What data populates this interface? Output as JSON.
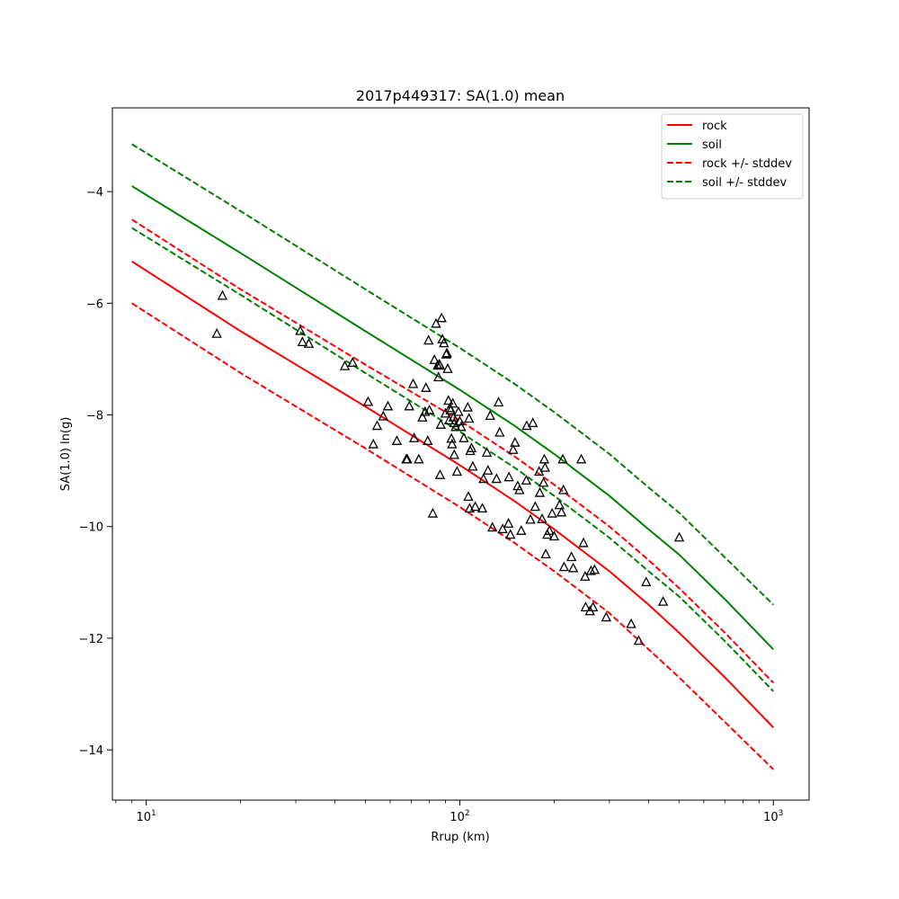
{
  "chart_data": {
    "type": "line",
    "title": "2017p449317: SA(1.0) mean",
    "xlabel": "Rrup (km)",
    "ylabel": "SA(1.0) ln(g)",
    "xscale": "log",
    "xlim": [
      7.8,
      1300
    ],
    "ylim": [
      -14.9,
      -2.5
    ],
    "xtick_labels": [
      {
        "base": "10",
        "exp": "1",
        "value": 10
      },
      {
        "base": "10",
        "exp": "2",
        "value": 100
      },
      {
        "base": "10",
        "exp": "3",
        "value": 1000
      }
    ],
    "ytick_labels": [
      {
        "label": "−4",
        "value": -4
      },
      {
        "label": "−6",
        "value": -6
      },
      {
        "label": "−8",
        "value": -8
      },
      {
        "label": "−10",
        "value": -10
      },
      {
        "label": "−12",
        "value": -12
      },
      {
        "label": "−14",
        "value": -14
      }
    ],
    "grid": false,
    "legend_position": "top-right",
    "series": [
      {
        "name": "rock",
        "color": "#ff0000",
        "dash": false,
        "x": [
          9,
          20,
          50,
          100,
          150,
          200,
          300,
          400,
          500,
          700,
          1000
        ],
        "y": [
          -5.25,
          -6.5,
          -7.85,
          -8.9,
          -9.55,
          -10.05,
          -10.8,
          -11.4,
          -11.9,
          -12.7,
          -13.6
        ]
      },
      {
        "name": "soil",
        "color": "#008000",
        "dash": false,
        "x": [
          9,
          20,
          50,
          100,
          150,
          200,
          300,
          400,
          500,
          700,
          1000
        ],
        "y": [
          -3.9,
          -5.1,
          -6.5,
          -7.55,
          -8.2,
          -8.7,
          -9.45,
          -10.05,
          -10.5,
          -11.3,
          -12.2
        ]
      },
      {
        "name": "rock +/- stddev",
        "color": "#ff0000",
        "dash": true,
        "x": [
          9,
          20,
          50,
          100,
          150,
          200,
          300,
          400,
          500,
          700,
          1000
        ],
        "y": [
          -4.5,
          -5.75,
          -7.1,
          -8.1,
          -8.75,
          -9.25,
          -10.0,
          -10.6,
          -11.1,
          -11.9,
          -12.8
        ]
      },
      {
        "name": "",
        "color": "#ff0000",
        "dash": true,
        "x": [
          9,
          20,
          50,
          100,
          150,
          200,
          300,
          400,
          500,
          700,
          1000
        ],
        "y": [
          -6.0,
          -7.25,
          -8.6,
          -9.65,
          -10.3,
          -10.8,
          -11.55,
          -12.2,
          -12.7,
          -13.5,
          -14.35
        ]
      },
      {
        "name": "soil +/- stddev",
        "color": "#008000",
        "dash": true,
        "x": [
          9,
          20,
          50,
          100,
          150,
          200,
          300,
          400,
          500,
          700,
          1000
        ],
        "y": [
          -3.15,
          -4.35,
          -5.75,
          -6.8,
          -7.45,
          -7.95,
          -8.7,
          -9.3,
          -9.75,
          -10.55,
          -11.4
        ]
      },
      {
        "name": "",
        "color": "#008000",
        "dash": true,
        "x": [
          9,
          20,
          50,
          100,
          150,
          200,
          300,
          400,
          500,
          700,
          1000
        ],
        "y": [
          -4.65,
          -5.85,
          -7.25,
          -8.3,
          -8.95,
          -9.45,
          -10.2,
          -10.8,
          -11.25,
          -12.05,
          -12.95
        ]
      }
    ],
    "observations": {
      "marker": "triangle",
      "points": [
        [
          17.5,
          -5.87
        ],
        [
          16.8,
          -6.55
        ],
        [
          31,
          -6.5
        ],
        [
          31.5,
          -6.7
        ],
        [
          33,
          -6.73
        ],
        [
          43,
          -7.13
        ],
        [
          45.5,
          -7.07
        ],
        [
          51,
          -7.77
        ],
        [
          53,
          -8.53
        ],
        [
          54.5,
          -8.2
        ],
        [
          57,
          -8.03
        ],
        [
          59,
          -7.85
        ],
        [
          63,
          -8.47
        ],
        [
          67.5,
          -8.8
        ],
        [
          68,
          -8.8
        ],
        [
          69,
          -7.85
        ],
        [
          71,
          -7.45
        ],
        [
          71.5,
          -8.42
        ],
        [
          74,
          -8.8
        ],
        [
          76,
          -8.05
        ],
        [
          77.5,
          -7.95
        ],
        [
          78,
          -7.52
        ],
        [
          79,
          -8.47
        ],
        [
          79.5,
          -6.67
        ],
        [
          80,
          -7.92
        ],
        [
          82,
          -9.77
        ],
        [
          83,
          -7.02
        ],
        [
          84,
          -6.37
        ],
        [
          85,
          -7.12
        ],
        [
          85.5,
          -7.33
        ],
        [
          86,
          -7.1
        ],
        [
          86.5,
          -9.08
        ],
        [
          86.5,
          -7.12
        ],
        [
          87,
          -8.18
        ],
        [
          87.5,
          -6.27
        ],
        [
          88,
          -6.65
        ],
        [
          89,
          -6.72
        ],
        [
          90,
          -7.98
        ],
        [
          90.5,
          -6.92
        ],
        [
          91,
          -6.9
        ],
        [
          91.5,
          -7.18
        ],
        [
          92,
          -7.75
        ],
        [
          92.5,
          -8.1
        ],
        [
          93,
          -7.88
        ],
        [
          93.5,
          -7.92
        ],
        [
          94,
          -8.43
        ],
        [
          94.5,
          -8.53
        ],
        [
          95,
          -7.8
        ],
        [
          95.5,
          -8.05
        ],
        [
          96,
          -8.15
        ],
        [
          96,
          -8.72
        ],
        [
          97,
          -8.22
        ],
        [
          98,
          -9.02
        ],
        [
          99,
          -7.95
        ],
        [
          100,
          -8.12
        ],
        [
          101,
          -8.22
        ],
        [
          103,
          -8.42
        ],
        [
          106,
          -7.87
        ],
        [
          106.5,
          -9.47
        ],
        [
          107,
          -8.07
        ],
        [
          107.5,
          -9.68
        ],
        [
          108,
          -8.65
        ],
        [
          109,
          -8.6
        ],
        [
          110,
          -8.93
        ],
        [
          112,
          -9.65
        ],
        [
          118,
          -9.68
        ],
        [
          119,
          -9.15
        ],
        [
          122,
          -8.68
        ],
        [
          123,
          -9.0
        ],
        [
          125,
          -8.02
        ],
        [
          127,
          -10.02
        ],
        [
          131,
          -9.15
        ],
        [
          133,
          -7.78
        ],
        [
          134,
          -8.32
        ],
        [
          137,
          -10.05
        ],
        [
          143,
          -9.95
        ],
        [
          143.5,
          -9.12
        ],
        [
          145,
          -10.15
        ],
        [
          148,
          -8.63
        ],
        [
          150,
          -8.5
        ],
        [
          153,
          -9.28
        ],
        [
          155,
          -9.35
        ],
        [
          157,
          -10.08
        ],
        [
          163,
          -9.18
        ],
        [
          163.5,
          -8.2
        ],
        [
          168,
          -9.88
        ],
        [
          171,
          -8.15
        ],
        [
          174,
          -9.65
        ],
        [
          179,
          -9.02
        ],
        [
          180,
          -9.4
        ],
        [
          183,
          -9.87
        ],
        [
          185,
          -9.22
        ],
        [
          186,
          -8.8
        ],
        [
          187,
          -8.95
        ],
        [
          188,
          -10.5
        ],
        [
          190,
          -10.15
        ],
        [
          193,
          -10.08
        ],
        [
          197,
          -9.77
        ],
        [
          200,
          -10.18
        ],
        [
          208,
          -9.62
        ],
        [
          211,
          -9.75
        ],
        [
          213,
          -8.8
        ],
        [
          214,
          -9.35
        ],
        [
          215,
          -10.73
        ],
        [
          227,
          -10.55
        ],
        [
          230,
          -10.75
        ],
        [
          244,
          -8.8
        ],
        [
          248,
          -10.3
        ],
        [
          251,
          -10.9
        ],
        [
          252,
          -11.45
        ],
        [
          260,
          -11.52
        ],
        [
          262,
          -10.8
        ],
        [
          266,
          -11.45
        ],
        [
          269,
          -10.78
        ],
        [
          293,
          -11.63
        ],
        [
          352,
          -11.75
        ],
        [
          372,
          -12.05
        ],
        [
          393,
          -11.0
        ],
        [
          445,
          -11.35
        ],
        [
          501,
          -10.2
        ]
      ]
    }
  }
}
